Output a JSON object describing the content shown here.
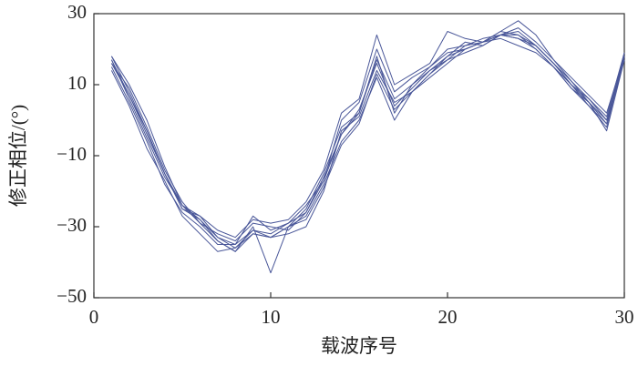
{
  "chart_data": {
    "type": "line",
    "x_label": "载波序号",
    "y_label": "修正相位/(°)",
    "x": [
      1,
      2,
      3,
      4,
      5,
      6,
      7,
      8,
      9,
      10,
      11,
      12,
      13,
      14,
      15,
      16,
      17,
      18,
      19,
      20,
      21,
      22,
      23,
      24,
      25,
      26,
      27,
      28,
      29,
      30
    ],
    "series": [
      {
        "color": "#4a5799",
        "values": [
          18,
          8,
          -3,
          -15,
          -25,
          -27,
          -33,
          -36,
          -32,
          -33,
          -30,
          -25,
          -15,
          -2,
          2,
          18,
          2,
          10,
          14,
          18,
          20,
          22,
          24,
          23,
          21,
          16,
          10,
          4,
          -2,
          18
        ]
      },
      {
        "color": "#4a5799",
        "values": [
          17,
          6,
          -5,
          -16,
          -24,
          -28,
          -34,
          -37,
          -30,
          -43,
          -30,
          -27,
          -18,
          -6,
          0,
          12,
          0,
          8,
          13,
          17,
          21,
          22,
          25,
          24,
          20,
          15,
          9,
          5,
          -3,
          17
        ]
      },
      {
        "color": "#4a5799",
        "values": [
          15,
          5,
          -6,
          -18,
          -26,
          -30,
          -35,
          -35,
          -27,
          -31,
          -29,
          -24,
          -17,
          0,
          5,
          20,
          8,
          12,
          15,
          20,
          21,
          23,
          24,
          23,
          20,
          15,
          10,
          6,
          0,
          18
        ]
      },
      {
        "color": "#4a5799",
        "values": [
          16,
          9,
          -2,
          -14,
          -23,
          -29,
          -32,
          -34,
          -29,
          -30,
          -31,
          -26,
          -16,
          -4,
          3,
          16,
          4,
          9,
          14,
          17,
          19,
          21,
          24,
          26,
          22,
          17,
          11,
          6,
          1,
          19
        ]
      },
      {
        "color": "#4a5799",
        "values": [
          14,
          4,
          -8,
          -17,
          -27,
          -32,
          -37,
          -36,
          -31,
          -33,
          -30,
          -28,
          -19,
          -7,
          -1,
          13,
          3,
          8,
          12,
          16,
          20,
          22,
          23,
          21,
          19,
          15,
          9,
          4,
          -1,
          17
        ]
      },
      {
        "color": "#4a5799",
        "values": [
          17,
          7,
          -4,
          -15,
          -24,
          -27,
          -31,
          -33,
          -28,
          -29,
          -28,
          -23,
          -14,
          2,
          6,
          24,
          10,
          13,
          16,
          25,
          23,
          22,
          25,
          28,
          24,
          17,
          12,
          7,
          2,
          18
        ]
      },
      {
        "color": "#4a5799",
        "values": [
          18,
          10,
          0,
          -13,
          -24,
          -29,
          -34,
          -37,
          -32,
          -33,
          -32,
          -30,
          -20,
          -3,
          1,
          14,
          5,
          8,
          13,
          18,
          22,
          21,
          24,
          25,
          21,
          16,
          10,
          5,
          -1,
          19
        ]
      },
      {
        "color": "#4a5799",
        "values": [
          16,
          7,
          -3,
          -15,
          -25,
          -28,
          -33,
          -35,
          -31,
          -32,
          -29,
          -26,
          -17,
          -4,
          2,
          17,
          6,
          10,
          15,
          19,
          20,
          22,
          24,
          24,
          21,
          16,
          11,
          5,
          0,
          18
        ]
      }
    ],
    "xlim": [
      0,
      30
    ],
    "xticks": [
      0,
      10,
      20,
      30
    ],
    "ylim": [
      -50,
      30
    ],
    "yticks": [
      {
        "value": -50,
        "label": "−50"
      },
      {
        "value": -30,
        "label": "−30"
      },
      {
        "value": -10,
        "label": "−10"
      },
      10,
      30
    ]
  }
}
